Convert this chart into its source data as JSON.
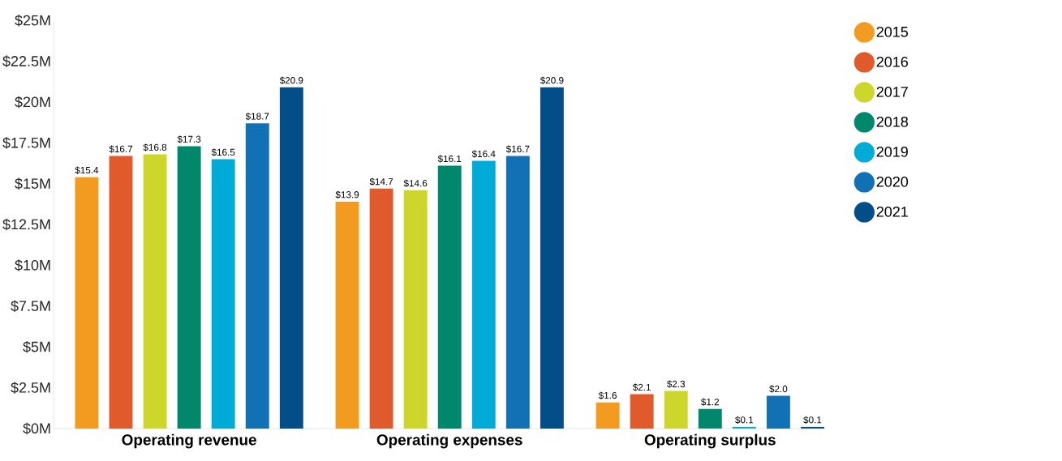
{
  "chart_data": {
    "type": "bar",
    "categories": [
      "Operating revenue",
      "Operating expenses",
      "Operating surplus"
    ],
    "series": [
      {
        "name": "2015",
        "color": "#f39a21",
        "values": [
          15.4,
          13.9,
          1.6
        ],
        "value_labels": [
          "$15.4",
          "$13.9",
          "$1.6"
        ]
      },
      {
        "name": "2016",
        "color": "#e05a2b",
        "values": [
          16.7,
          14.7,
          2.1
        ],
        "value_labels": [
          "$16.7",
          "$14.7",
          "$2.1"
        ]
      },
      {
        "name": "2017",
        "color": "#cdd62b",
        "values": [
          16.8,
          14.6,
          2.3
        ],
        "value_labels": [
          "$16.8",
          "$14.6",
          "$2.3"
        ]
      },
      {
        "name": "2018",
        "color": "#00876c",
        "values": [
          17.3,
          16.1,
          1.2
        ],
        "value_labels": [
          "$17.3",
          "$16.1",
          "$1.2"
        ]
      },
      {
        "name": "2019",
        "color": "#00acd7",
        "values": [
          16.5,
          16.4,
          0.1
        ],
        "value_labels": [
          "$16.5",
          "$16.4",
          "$0.1"
        ]
      },
      {
        "name": "2020",
        "color": "#1271b5",
        "values": [
          18.7,
          16.7,
          2.0
        ],
        "value_labels": [
          "$18.7",
          "$16.7",
          "$2.0"
        ]
      },
      {
        "name": "2021",
        "color": "#034d89",
        "values": [
          20.9,
          20.9,
          0.1
        ],
        "value_labels": [
          "$20.9",
          "$20.9",
          "$0.1"
        ]
      }
    ],
    "ylim": [
      0,
      25
    ],
    "yticks": [
      {
        "value": 0,
        "label": "$0M"
      },
      {
        "value": 2.5,
        "label": "$2.5M"
      },
      {
        "value": 5,
        "label": "$5M"
      },
      {
        "value": 7.5,
        "label": "$7.5M"
      },
      {
        "value": 10,
        "label": "$10M"
      },
      {
        "value": 12.5,
        "label": "$12.5M"
      },
      {
        "value": 15,
        "label": "$15M"
      },
      {
        "value": 17.5,
        "label": "$17.5M"
      },
      {
        "value": 20,
        "label": "$20M"
      },
      {
        "value": 22.5,
        "label": "$22.5M"
      },
      {
        "value": 25,
        "label": "$25M"
      }
    ],
    "grid": false,
    "legend": "top right"
  }
}
